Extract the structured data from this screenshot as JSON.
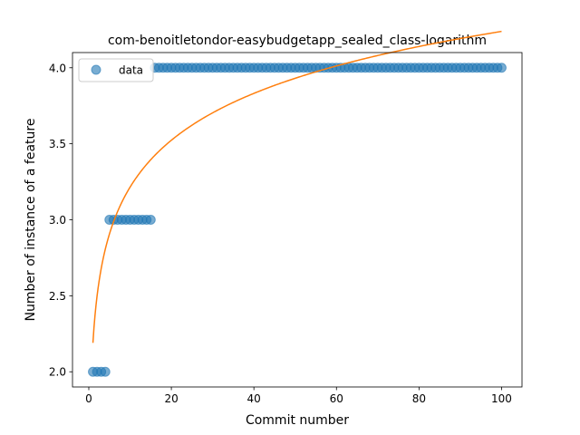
{
  "chart_data": {
    "type": "scatter",
    "title": "com-benoitletondor-easybudgetapp_sealed_class-logarithm",
    "xlabel": "Commit number",
    "ylabel": "Number of instance of a feature",
    "xlim": [
      -3.95,
      104.95
    ],
    "ylim": [
      1.9,
      4.1
    ],
    "xticks": [
      0,
      20,
      40,
      60,
      80,
      100
    ],
    "yticks": [
      2.0,
      2.5,
      3.0,
      3.5,
      4.0
    ],
    "xtick_labels": [
      "0",
      "20",
      "40",
      "60",
      "80",
      "100"
    ],
    "ytick_labels": [
      "2.0",
      "2.5",
      "3.0",
      "3.5",
      "4.0"
    ],
    "grid": false,
    "legend": {
      "placement": "top-left",
      "entries": [
        "data"
      ]
    },
    "series": [
      {
        "name": "data",
        "kind": "scatter",
        "color": "#1f77b4",
        "segments": [
          {
            "x_from": 1,
            "x_to": 4,
            "y": 2
          },
          {
            "x_from": 5,
            "x_to": 15,
            "y": 3
          },
          {
            "x_from": 16,
            "x_to": 100,
            "y": 4
          }
        ]
      },
      {
        "kind": "line",
        "color": "#ff7f0e",
        "fit": {
          "form": "a + b*ln(x)",
          "a": 2.19,
          "b": 0.445,
          "x_from": 1,
          "x_to": 100
        }
      }
    ]
  }
}
